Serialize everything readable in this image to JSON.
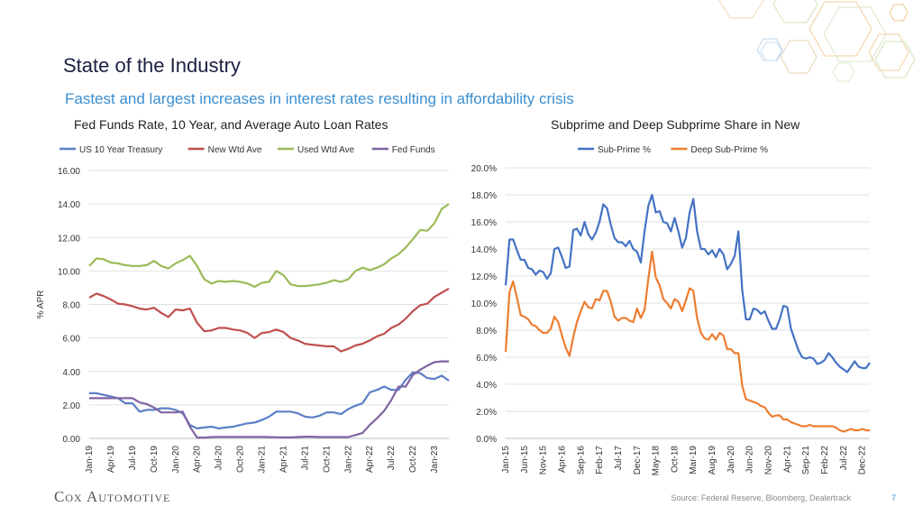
{
  "slide": {
    "title": "State of the Industry",
    "subtitle": "Fastest and largest increases in interest rates resulting in affordability crisis",
    "logo_text": "Cox Automotive",
    "source": "Source: Federal Reserve, Bloomberg, Dealertrack",
    "page_number": "7"
  },
  "chart_data": [
    {
      "type": "line",
      "title": "Fed Funds Rate, 10 Year, and Average Auto Loan Rates",
      "ylabel": "% APR",
      "xlabel": "",
      "ylim": [
        0,
        16
      ],
      "y_ticks": [
        "0.00",
        "2.00",
        "4.00",
        "6.00",
        "8.00",
        "10.00",
        "12.00",
        "14.00",
        "16.00"
      ],
      "x_tick_labels": [
        "Jan-19",
        "Apr-19",
        "Jul-19",
        "Oct-19",
        "Jan-20",
        "Apr-20",
        "Jul-20",
        "Oct-20",
        "Jan-21",
        "Apr-21",
        "Jul-21",
        "Oct-21",
        "Jan-22",
        "Apr-22",
        "Jul-22",
        "Oct-22",
        "Jan-23"
      ],
      "legend_position": "top",
      "grid": true,
      "x_start": "2019-01",
      "series": [
        {
          "name": "US 10 Year Treasury",
          "color": "#5b7fc7",
          "values": [
            2.7,
            2.7,
            2.6,
            2.5,
            2.4,
            2.1,
            2.1,
            1.6,
            1.7,
            1.7,
            1.8,
            1.8,
            1.7,
            1.5,
            0.8,
            0.6,
            0.65,
            0.7,
            0.6,
            0.65,
            0.7,
            0.8,
            0.9,
            0.95,
            1.1,
            1.3,
            1.6,
            1.6,
            1.6,
            1.5,
            1.3,
            1.25,
            1.35,
            1.55,
            1.55,
            1.45,
            1.75,
            1.95,
            2.1,
            2.75,
            2.9,
            3.1,
            2.9,
            2.9,
            3.5,
            3.95,
            3.9,
            3.6,
            3.55,
            3.75,
            3.45
          ]
        },
        {
          "name": "New Wtd Ave",
          "color": "#c0504d",
          "values": [
            8.4,
            8.65,
            8.5,
            8.3,
            8.05,
            8.0,
            7.9,
            7.75,
            7.7,
            7.8,
            7.5,
            7.25,
            7.7,
            7.65,
            7.75,
            6.9,
            6.4,
            6.45,
            6.6,
            6.6,
            6.5,
            6.45,
            6.3,
            6.0,
            6.3,
            6.35,
            6.5,
            6.35,
            6.0,
            5.85,
            5.65,
            5.6,
            5.55,
            5.5,
            5.5,
            5.2,
            5.35,
            5.55,
            5.65,
            5.85,
            6.1,
            6.25,
            6.6,
            6.8,
            7.15,
            7.6,
            7.95,
            8.05,
            8.45,
            8.7,
            8.95
          ]
        },
        {
          "name": "Used Wtd Ave",
          "color": "#9bbb59",
          "values": [
            10.3,
            10.75,
            10.7,
            10.5,
            10.45,
            10.35,
            10.3,
            10.3,
            10.35,
            10.6,
            10.3,
            10.15,
            10.45,
            10.65,
            10.9,
            10.3,
            9.5,
            9.25,
            9.4,
            9.35,
            9.4,
            9.35,
            9.25,
            9.05,
            9.3,
            9.35,
            10.0,
            9.75,
            9.2,
            9.1,
            9.1,
            9.15,
            9.2,
            9.3,
            9.45,
            9.35,
            9.5,
            10.0,
            10.2,
            10.05,
            10.2,
            10.4,
            10.75,
            11.0,
            11.4,
            11.9,
            12.45,
            12.4,
            12.85,
            13.7,
            14.0
          ]
        },
        {
          "name": "Fed Funds",
          "color": "#8064a2",
          "values": [
            2.4,
            2.4,
            2.4,
            2.4,
            2.4,
            2.4,
            2.4,
            2.15,
            2.05,
            1.85,
            1.55,
            1.55,
            1.55,
            1.6,
            0.7,
            0.05,
            0.05,
            0.08,
            0.09,
            0.09,
            0.09,
            0.09,
            0.09,
            0.09,
            0.09,
            0.08,
            0.07,
            0.06,
            0.06,
            0.08,
            0.1,
            0.1,
            0.08,
            0.08,
            0.08,
            0.08,
            0.08,
            0.2,
            0.33,
            0.8,
            1.2,
            1.65,
            2.3,
            3.1,
            3.1,
            3.8,
            4.1,
            4.35,
            4.55,
            4.6,
            4.6
          ]
        }
      ]
    },
    {
      "type": "line",
      "title": "Subprime and Deep Subprime Share in New",
      "xlabel": "",
      "ylabel": "",
      "ylim": [
        0,
        20
      ],
      "y_ticks": [
        "0.0%",
        "2.0%",
        "4.0%",
        "6.0%",
        "8.0%",
        "10.0%",
        "12.0%",
        "14.0%",
        "16.0%",
        "18.0%",
        "20.0%"
      ],
      "x_tick_labels": [
        "Jan-15",
        "Jun-15",
        "Nov-15",
        "Apr-16",
        "Sep-16",
        "Feb-17",
        "Jul-17",
        "Dec-17",
        "May-18",
        "Oct-18",
        "Mar-19",
        "Aug-19",
        "Jan-20",
        "Jun-20",
        "Nov-20",
        "Apr-21",
        "Sep-21",
        "Feb-22",
        "Jul-22",
        "Dec-22"
      ],
      "legend_position": "top",
      "grid": true,
      "x_start": "2015-01",
      "series": [
        {
          "name": "Sub-Prime %",
          "color": "#4472c4",
          "values": [
            11.3,
            14.7,
            14.7,
            13.9,
            13.2,
            13.2,
            12.6,
            12.5,
            12.1,
            12.4,
            12.3,
            11.8,
            12.2,
            14.0,
            14.1,
            13.4,
            12.6,
            12.7,
            15.4,
            15.5,
            15.0,
            16.0,
            15.1,
            14.7,
            15.2,
            16.0,
            17.3,
            17.0,
            15.8,
            14.8,
            14.5,
            14.5,
            14.2,
            14.6,
            14.0,
            13.8,
            13.0,
            15.3,
            17.2,
            18.0,
            16.7,
            16.8,
            16.0,
            15.9,
            15.3,
            16.3,
            15.3,
            14.1,
            14.8,
            16.7,
            17.7,
            15.3,
            14.0,
            14.0,
            13.6,
            13.9,
            13.4,
            14.0,
            13.6,
            12.5,
            12.9,
            13.5,
            15.3,
            11.0,
            8.8,
            8.8,
            9.6,
            9.5,
            9.2,
            9.4,
            8.7,
            8.1,
            8.1,
            8.8,
            9.8,
            9.7,
            8.1,
            7.3,
            6.5,
            6.0,
            5.9,
            6.0,
            5.9,
            5.5,
            5.6,
            5.8,
            6.3,
            6.0,
            5.6,
            5.3,
            5.1,
            4.9,
            5.3,
            5.7,
            5.3,
            5.2,
            5.2,
            5.6
          ]
        },
        {
          "name": "Deep Sub-Prime %",
          "color": "#ed7d31",
          "values": [
            6.4,
            10.8,
            11.6,
            10.4,
            9.1,
            9.0,
            8.8,
            8.4,
            8.3,
            8.0,
            7.8,
            7.8,
            8.1,
            9.0,
            8.6,
            7.6,
            6.7,
            6.1,
            7.5,
            8.6,
            9.4,
            10.1,
            9.7,
            9.6,
            10.3,
            10.2,
            10.9,
            10.9,
            10.1,
            9.0,
            8.7,
            8.9,
            8.9,
            8.7,
            8.6,
            9.6,
            8.9,
            9.5,
            11.8,
            13.8,
            11.9,
            11.3,
            10.3,
            10.0,
            9.6,
            10.3,
            10.1,
            9.4,
            10.2,
            11.1,
            10.9,
            8.9,
            7.8,
            7.4,
            7.3,
            7.7,
            7.3,
            7.8,
            7.6,
            6.6,
            6.6,
            6.3,
            6.3,
            3.9,
            2.9,
            2.8,
            2.7,
            2.6,
            2.4,
            2.3,
            1.9,
            1.6,
            1.7,
            1.7,
            1.4,
            1.4,
            1.2,
            1.1,
            1.0,
            0.9,
            0.9,
            1.0,
            0.9,
            0.9,
            0.9,
            0.9,
            0.9,
            0.9,
            0.8,
            0.6,
            0.5,
            0.6,
            0.7,
            0.6,
            0.6,
            0.7,
            0.6,
            0.6
          ]
        }
      ]
    }
  ]
}
